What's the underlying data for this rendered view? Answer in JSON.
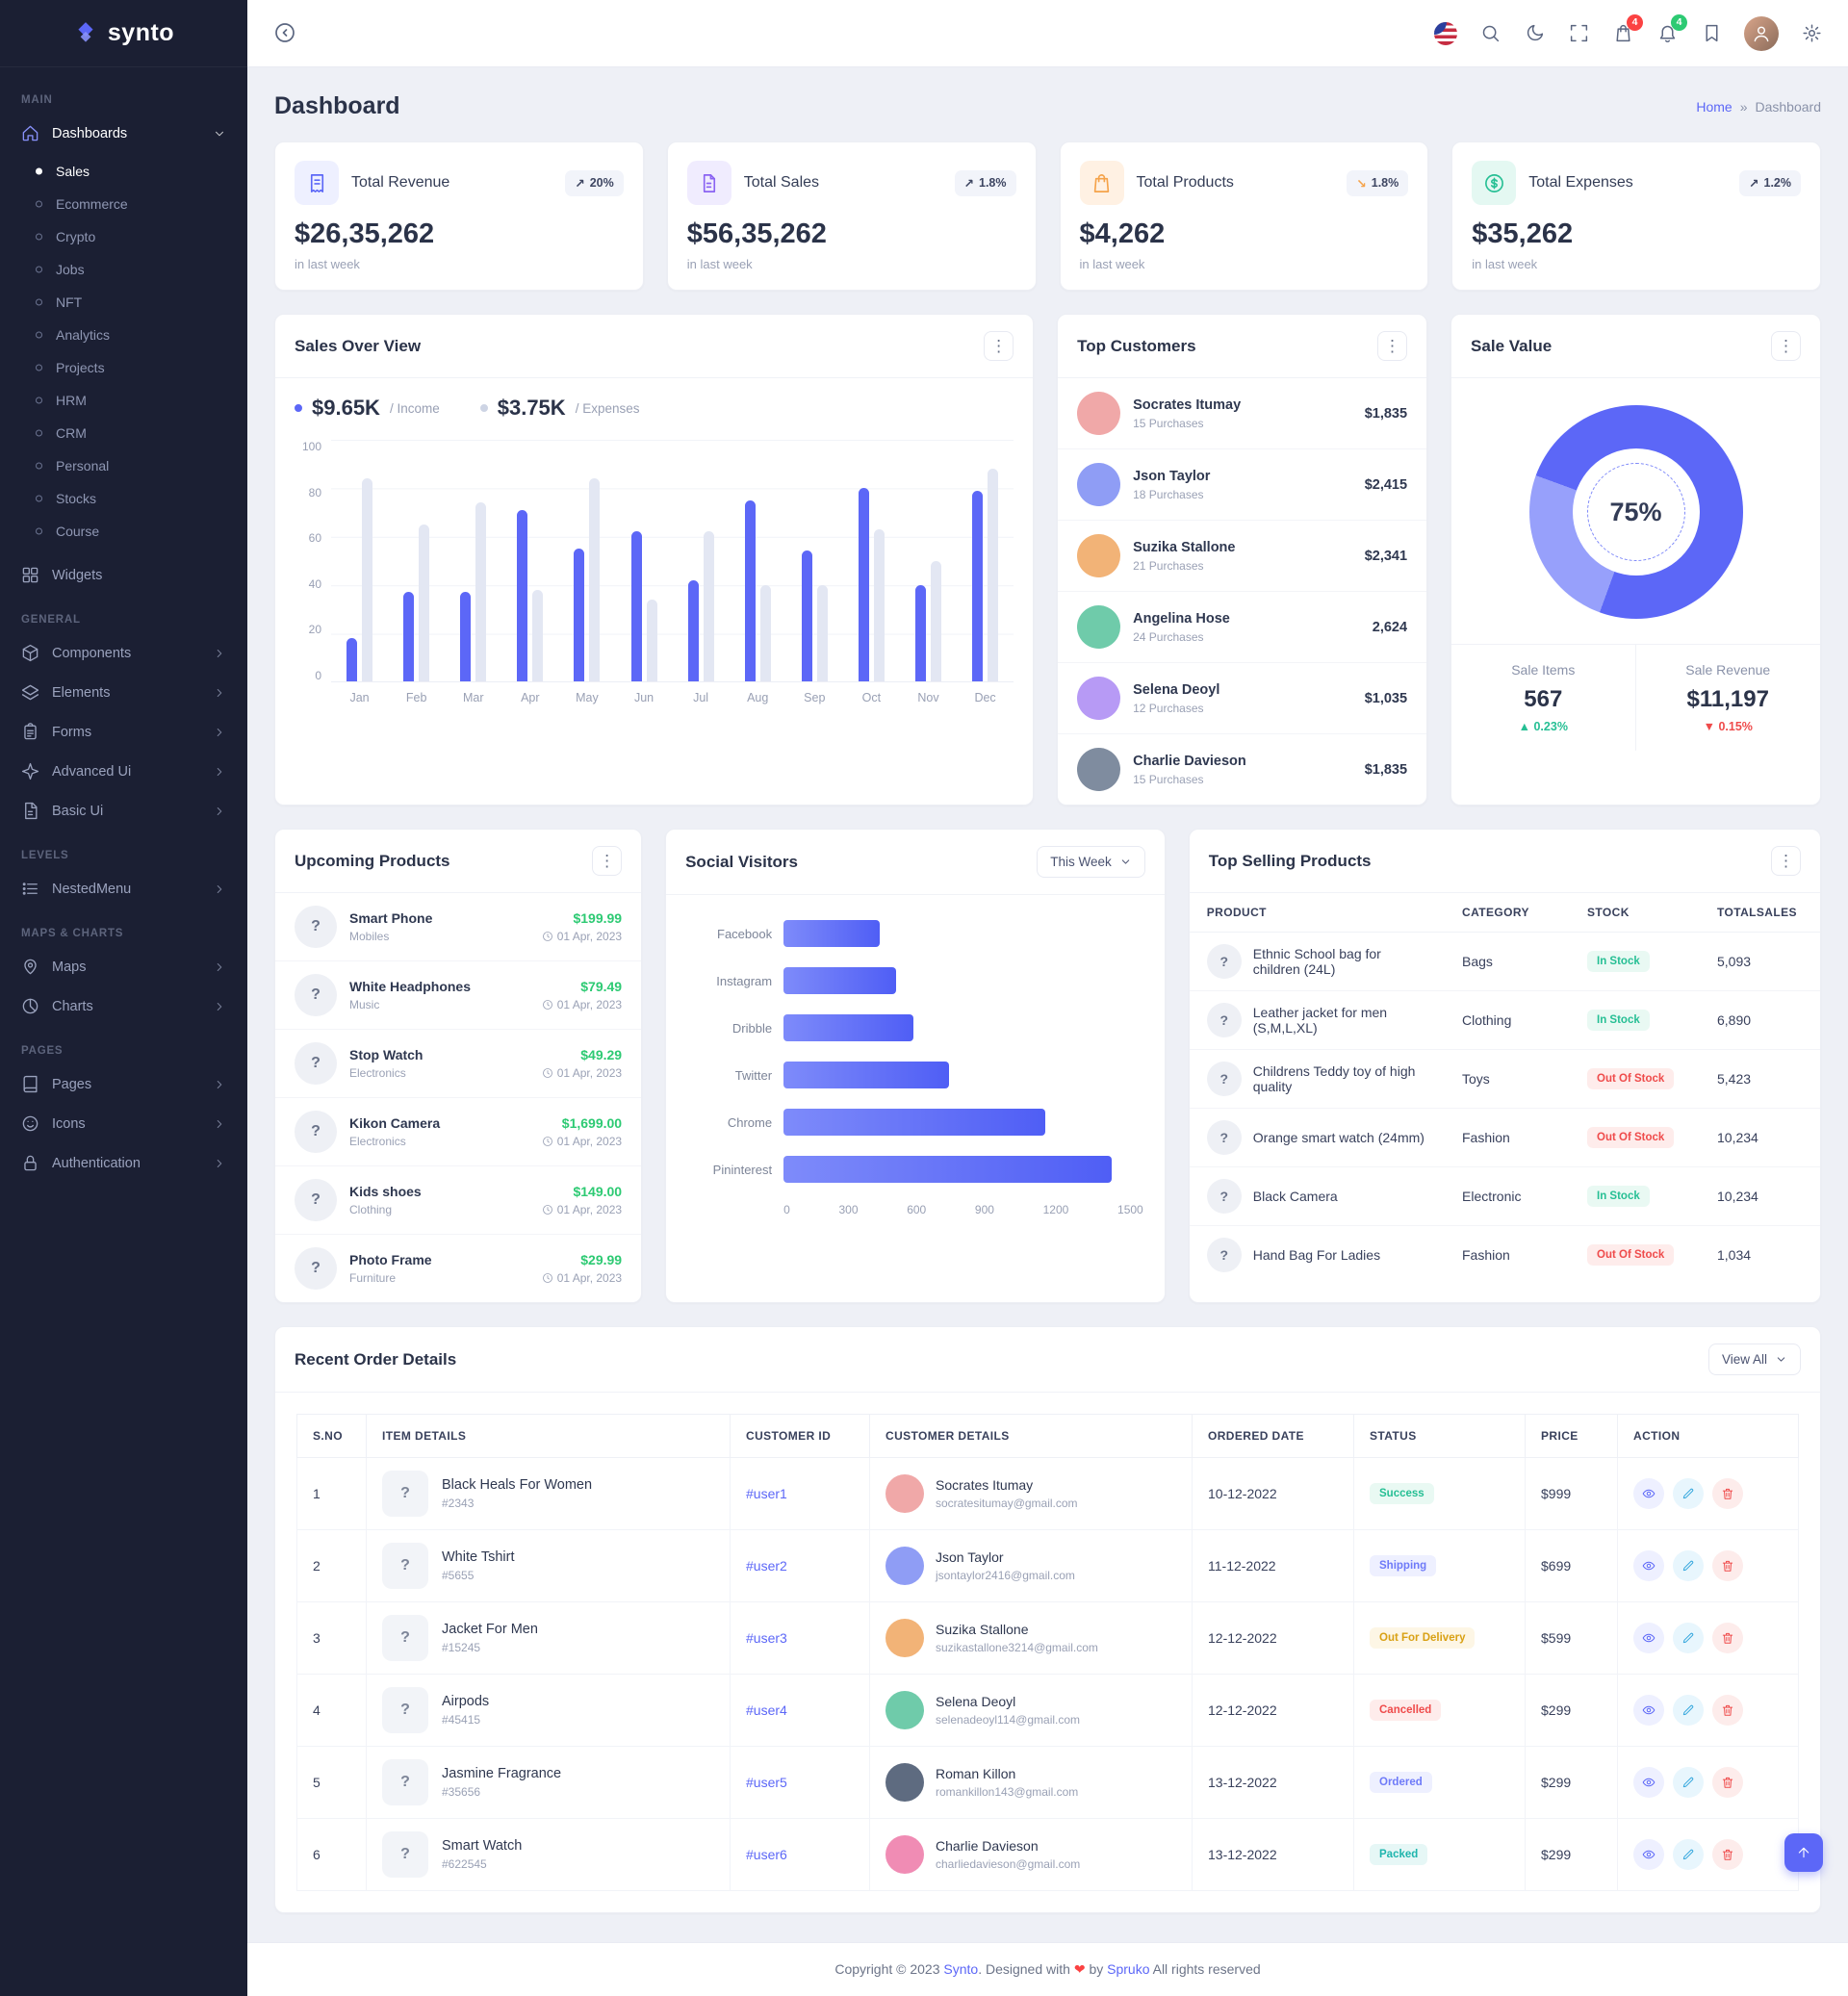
{
  "icons": {
    "kebab": "⋮"
  },
  "sidebar": {
    "logo": "synto",
    "section_main": "MAIN",
    "dashboards": "Dashboards",
    "dashboard_children": [
      "Sales",
      "Ecommerce",
      "Crypto",
      "Jobs",
      "NFT",
      "Analytics",
      "Projects",
      "HRM",
      "CRM",
      "Personal",
      "Stocks",
      "Course"
    ],
    "widgets": "Widgets",
    "section_general": "GENERAL",
    "general_items": [
      {
        "label": "Components",
        "icon": "#icon-box"
      },
      {
        "label": "Elements",
        "icon": "#icon-layers"
      },
      {
        "label": "Forms",
        "icon": "#icon-form"
      },
      {
        "label": "Advanced Ui",
        "icon": "#icon-spark"
      },
      {
        "label": "Basic Ui",
        "icon": "#icon-doc"
      }
    ],
    "section_levels": "LEVELS",
    "levels_items": [
      {
        "label": "NestedMenu",
        "icon": "#icon-nested"
      }
    ],
    "section_maps": "MAPS & CHARTS",
    "maps_items": [
      {
        "label": "Maps",
        "icon": "#icon-pin"
      },
      {
        "label": "Charts",
        "icon": "#icon-pie"
      }
    ],
    "section_pages": "PAGES",
    "pages_items": [
      {
        "label": "Pages",
        "icon": "#icon-book"
      },
      {
        "label": "Icons",
        "icon": "#icon-smile"
      },
      {
        "label": "Authentication",
        "icon": "#icon-lock"
      }
    ]
  },
  "topbar": {
    "cart_badge": "4",
    "bell_badge": "4"
  },
  "page": {
    "title": "Dashboard",
    "breadcrumb_home": "Home",
    "breadcrumb_sep": "»",
    "breadcrumb_current": "Dashboard"
  },
  "stats": [
    {
      "label": "Total Revenue",
      "value": "$26,35,262",
      "trend": "20%",
      "arrow": "↗",
      "arrow_color": "#3e4662",
      "sub": "in last week",
      "icon": "#icon-receipt",
      "icon_bg": "#eef0ff",
      "icon_color": "#5c67f7"
    },
    {
      "label": "Total Sales",
      "value": "$56,35,262",
      "trend": "1.8%",
      "arrow": "↗",
      "arrow_color": "#3e4662",
      "sub": "in last week",
      "icon": "#icon-file",
      "icon_bg": "#f0ecfe",
      "icon_color": "#8a63f2"
    },
    {
      "label": "Total Products",
      "value": "$4,262",
      "trend": "1.8%",
      "arrow": "↘",
      "arrow_color": "#f5a34a",
      "sub": "in last week",
      "icon": "#icon-bag",
      "icon_bg": "#fff1e3",
      "icon_color": "#f5a34a"
    },
    {
      "label": "Total Expenses",
      "value": "$35,262",
      "trend": "1.2%",
      "arrow": "↗",
      "arrow_color": "#3e4662",
      "sub": "in last week",
      "icon": "#icon-dollar",
      "icon_bg": "#e4f8f2",
      "icon_color": "#26bf94"
    }
  ],
  "sales_overview": {
    "title": "Sales Over View",
    "legend": [
      {
        "value": "$9.65K",
        "label": "/ Income",
        "color": "#5c67f7"
      },
      {
        "value": "$3.75K",
        "label": "/ Expenses",
        "color": "#cdd4e4"
      }
    ]
  },
  "top_customers": {
    "title": "Top Customers",
    "items": [
      {
        "name": "Socrates Itumay",
        "purchases": "15 Purchases",
        "amount": "$1,835"
      },
      {
        "name": "Json Taylor",
        "purchases": "18 Purchases",
        "amount": "$2,415"
      },
      {
        "name": "Suzika Stallone",
        "purchases": "21 Purchases",
        "amount": "$2,341"
      },
      {
        "name": "Angelina Hose",
        "purchases": "24 Purchases",
        "amount": "2,624"
      },
      {
        "name": "Selena Deoyl",
        "purchases": "12 Purchases",
        "amount": "$1,035"
      },
      {
        "name": "Charlie Davieson",
        "purchases": "15 Purchases",
        "amount": "$1,835"
      }
    ]
  },
  "sale_value": {
    "title": "Sale Value",
    "percent_label": "75%",
    "items": [
      {
        "label": "Sale Items",
        "value": "567",
        "arrow": "▲",
        "delta": "0.23%",
        "color": "#26bf94"
      },
      {
        "label": "Sale Revenue",
        "value": "$11,197",
        "arrow": "▼",
        "delta": "0.15%",
        "color": "#ef4b4b"
      }
    ]
  },
  "upcoming_products": {
    "title": "Upcoming Products",
    "items": [
      {
        "name": "Smart Phone",
        "category": "Mobiles",
        "price": "$199.99",
        "date": "01 Apr, 2023"
      },
      {
        "name": "White Headphones",
        "category": "Music",
        "price": "$79.49",
        "date": "01 Apr, 2023"
      },
      {
        "name": "Stop Watch",
        "category": "Electronics",
        "price": "$49.29",
        "date": "01 Apr, 2023"
      },
      {
        "name": "Kikon Camera",
        "category": "Electronics",
        "price": "$1,699.00",
        "date": "01 Apr, 2023"
      },
      {
        "name": "Kids shoes",
        "category": "Clothing",
        "price": "$149.00",
        "date": "01 Apr, 2023"
      },
      {
        "name": "Photo Frame",
        "category": "Furniture",
        "price": "$29.99",
        "date": "01 Apr, 2023"
      }
    ]
  },
  "social_visitors": {
    "title": "Social Visitors",
    "filter_label": "This Week"
  },
  "top_selling": {
    "title": "Top Selling Products",
    "columns": [
      "PRODUCT",
      "CATEGORY",
      "STOCK",
      "TOTALSALES"
    ],
    "rows": [
      {
        "product": "Ethnic School bag for children (24L)",
        "category": "Bags",
        "stock": "In Stock",
        "stock_color": "#26bf94",
        "stock_bg": "#e9f9f3",
        "sales": "5,093"
      },
      {
        "product": "Leather jacket for men (S,M,L,XL)",
        "category": "Clothing",
        "stock": "In Stock",
        "stock_color": "#26bf94",
        "stock_bg": "#e9f9f3",
        "sales": "6,890"
      },
      {
        "product": "Childrens Teddy toy of high quality",
        "category": "Toys",
        "stock": "Out Of Stock",
        "stock_color": "#ef4b4b",
        "stock_bg": "#feeceb",
        "sales": "5,423"
      },
      {
        "product": "Orange smart watch (24mm)",
        "category": "Fashion",
        "stock": "Out Of Stock",
        "stock_color": "#ef4b4b",
        "stock_bg": "#feeceb",
        "sales": "10,234"
      },
      {
        "product": "Black Camera",
        "category": "Electronic",
        "stock": "In Stock",
        "stock_color": "#26bf94",
        "stock_bg": "#e9f9f3",
        "sales": "10,234"
      },
      {
        "product": "Hand Bag For Ladies",
        "category": "Fashion",
        "stock": "Out Of Stock",
        "stock_color": "#ef4b4b",
        "stock_bg": "#feeceb",
        "sales": "1,034"
      }
    ]
  },
  "recent_orders": {
    "title": "Recent Order Details",
    "view_all_label": "View All",
    "columns": [
      "S.NO",
      "ITEM DETAILS",
      "CUSTOMER ID",
      "CUSTOMER DETAILS",
      "ORDERED DATE",
      "STATUS",
      "PRICE",
      "ACTION"
    ],
    "rows": [
      {
        "sno": "1",
        "item": "Black Heals For Women",
        "item_id": "#2343",
        "customer_id": "#user1",
        "customer": "Socrates Itumay",
        "email": "socratesitumay@gmail.com",
        "date": "10-12-2022",
        "status": "Success",
        "status_color": "#26bf94",
        "status_bg": "#e9f9f3",
        "price": "$999"
      },
      {
        "sno": "2",
        "item": "White Tshirt",
        "item_id": "#5655",
        "customer_id": "#user2",
        "customer": "Json Taylor",
        "email": "jsontaylor2416@gmail.com",
        "date": "11-12-2022",
        "status": "Shipping",
        "status_color": "#6e7af8",
        "status_bg": "#eef0ff",
        "price": "$699"
      },
      {
        "sno": "3",
        "item": "Jacket For Men",
        "item_id": "#15245",
        "customer_id": "#user3",
        "customer": "Suzika Stallone",
        "email": "suzikastallone3214@gmail.com",
        "date": "12-12-2022",
        "status": "Out For Delivery",
        "status_color": "#d9a114",
        "status_bg": "#fdf6e5",
        "price": "$599"
      },
      {
        "sno": "4",
        "item": "Airpods",
        "item_id": "#45415",
        "customer_id": "#user4",
        "customer": "Selena Deoyl",
        "email": "selenadeoyl114@gmail.com",
        "date": "12-12-2022",
        "status": "Cancelled",
        "status_color": "#ef4b4b",
        "status_bg": "#feeceb",
        "price": "$299"
      },
      {
        "sno": "5",
        "item": "Jasmine Fragrance",
        "item_id": "#35656",
        "customer_id": "#user5",
        "customer": "Roman Killon",
        "email": "romankillon143@gmail.com",
        "date": "13-12-2022",
        "status": "Ordered",
        "status_color": "#6e7af8",
        "status_bg": "#eef0ff",
        "price": "$299"
      },
      {
        "sno": "6",
        "item": "Smart Watch",
        "item_id": "#622545",
        "customer_id": "#user6",
        "customer": "Charlie Davieson",
        "email": "charliedavieson@gmail.com",
        "date": "13-12-2022",
        "status": "Packed",
        "status_color": "#1fb5ad",
        "status_bg": "#e6f7f6",
        "price": "$299"
      }
    ]
  },
  "footer": {
    "text_1": "Copyright © 2023",
    "brand": "Synto",
    "text_2": ". Designed with",
    "heart": "❤",
    "text_3": "by",
    "brand2": "Spruko",
    "text_4": "All rights reserved"
  },
  "chart_data": [
    {
      "id": "sales_overview",
      "type": "bar",
      "title": "Sales Over View",
      "categories": [
        "Jan",
        "Feb",
        "Mar",
        "Apr",
        "May",
        "Jun",
        "Jul",
        "Aug",
        "Sep",
        "Oct",
        "Nov",
        "Dec"
      ],
      "series": [
        {
          "name": "Income",
          "color": "#5c67f7",
          "values": [
            18,
            37,
            37,
            71,
            55,
            62,
            42,
            75,
            54,
            80,
            40,
            79
          ]
        },
        {
          "name": "Expenses",
          "color": "#e3e7f3",
          "values": [
            84,
            65,
            74,
            38,
            84,
            34,
            62,
            40,
            40,
            63,
            50,
            88
          ]
        }
      ],
      "ylim": [
        0,
        100
      ],
      "yticks": [
        0,
        20,
        40,
        60,
        80,
        100
      ],
      "grid": true,
      "legend_position": "top"
    },
    {
      "id": "social_visitors",
      "type": "bar",
      "orientation": "horizontal",
      "title": "Social Visitors",
      "categories": [
        "Facebook",
        "Instagram",
        "Dribble",
        "Twitter",
        "Chrome",
        "Pininterest"
      ],
      "values": [
        400,
        470,
        540,
        690,
        1090,
        1370
      ],
      "xlim": [
        0,
        1500
      ],
      "xticks": [
        0,
        300,
        600,
        900,
        1200,
        1500
      ]
    },
    {
      "id": "sale_value",
      "type": "pie",
      "title": "Sale Value",
      "value": 75,
      "label": "75%",
      "colors": [
        "#5c67f7",
        "#97a0fb"
      ]
    }
  ]
}
